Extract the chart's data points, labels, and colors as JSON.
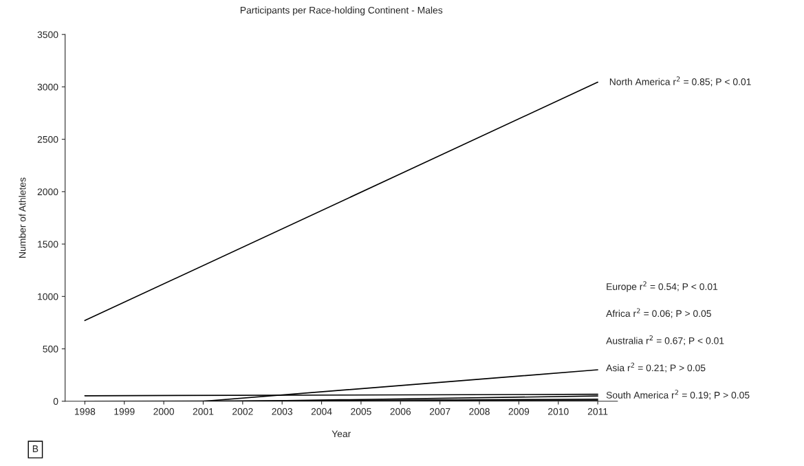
{
  "chart_data": {
    "type": "line",
    "title": "Participants per Race-holding Continent - Males",
    "xlabel": "Year",
    "ylabel": "Number of Athletes",
    "xlim": [
      1997.5,
      2011.5
    ],
    "xticks": [
      1998,
      1999,
      2000,
      2001,
      2002,
      2003,
      2004,
      2005,
      2006,
      2007,
      2008,
      2009,
      2010,
      2011
    ],
    "ylim": [
      0,
      3500
    ],
    "yticks": [
      0,
      500,
      1000,
      1500,
      2000,
      2500,
      3000,
      3500
    ],
    "grid": false,
    "legend": false,
    "marker": "none",
    "line_style": "solid",
    "series": [
      {
        "name": "North America r$^{2}$ = 0.85; P < 0.01",
        "color": "#000000",
        "x": [
          1998,
          2011
        ],
        "values": [
          770,
          3045
        ]
      },
      {
        "name": "Europe r$^{2}$ = 0.54; P < 0.01",
        "color": "#000000",
        "x": [
          2001,
          2011
        ],
        "values": [
          0,
          300
        ]
      },
      {
        "name": "Africa r$^{2}$ = 0.06; P > 0.05",
        "color": "#000000",
        "x": [
          1998,
          2011
        ],
        "values": [
          52,
          66
        ]
      },
      {
        "name": "Australia r$^{2}$ = 0.67; P < 0.01",
        "color": "#000000",
        "x": [
          2002,
          2011
        ],
        "values": [
          0,
          50
        ]
      },
      {
        "name": "Asia r$^{2}$ = 0.21; P > 0.05",
        "color": "#000000",
        "x": [
          2001,
          2011
        ],
        "values": [
          0,
          20
        ]
      },
      {
        "name": "South America r$^{2}$ = 0.19; P > 0.05",
        "color": "#000000",
        "x": [
          1998,
          2011
        ],
        "values": [
          0,
          10
        ]
      }
    ],
    "annotations": [
      "B"
    ]
  }
}
